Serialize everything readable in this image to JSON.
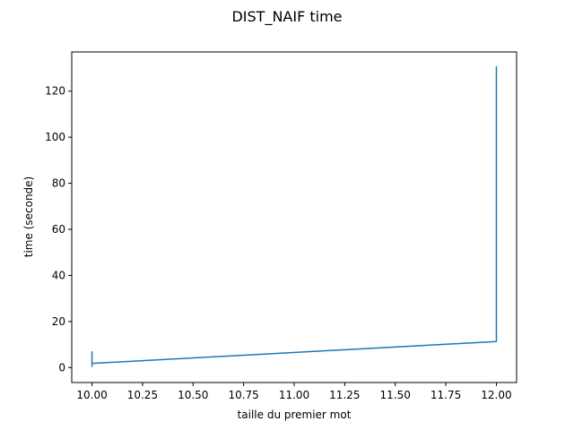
{
  "chart_data": {
    "type": "line",
    "title": "DIST_NAIF time",
    "xlabel": "taille du premier mot",
    "ylabel": "time (seconde)",
    "xlim": [
      9.9,
      12.1
    ],
    "ylim": [
      -6.5,
      137
    ],
    "xticks": [
      10.0,
      10.25,
      10.5,
      10.75,
      11.0,
      11.25,
      11.5,
      11.75,
      12.0
    ],
    "xtick_labels": [
      "10.00",
      "10.25",
      "10.50",
      "10.75",
      "11.00",
      "11.25",
      "11.50",
      "11.75",
      "12.00"
    ],
    "yticks": [
      0,
      20,
      40,
      60,
      80,
      100,
      120
    ],
    "ytick_labels": [
      "0",
      "20",
      "40",
      "60",
      "80",
      "100",
      "120"
    ],
    "grid": false,
    "legend": "none",
    "series": [
      {
        "color": "#1f77b4",
        "x": [
          10.0,
          10.0,
          10.0,
          10.0,
          10.0,
          10.0,
          10.0,
          10.0,
          10.0,
          12.0,
          12.0,
          12.0
        ],
        "y": [
          1.8,
          6.5,
          0.5,
          6.8,
          1.2,
          5.5,
          0.8,
          4.5,
          1.8,
          11.3,
          11.5,
          130.5
        ]
      }
    ]
  }
}
